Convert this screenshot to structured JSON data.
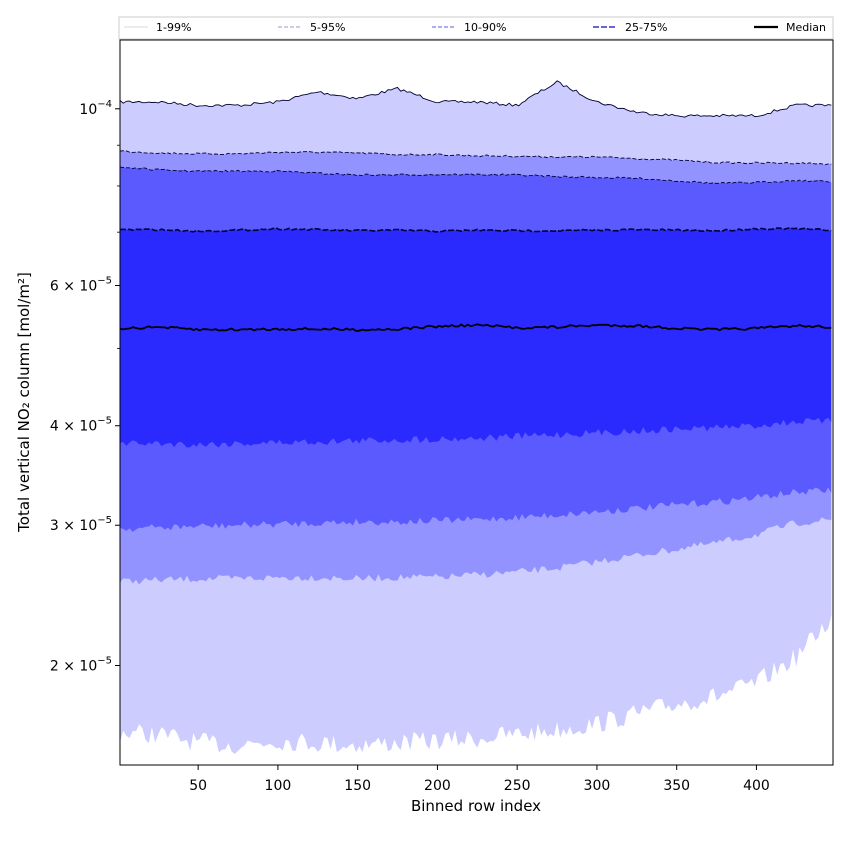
{
  "chart_data": {
    "type": "area",
    "xlabel": "Binned row index",
    "ylabel": "Total vertical NO₂ column [mol/m²]",
    "xlim": [
      1,
      448
    ],
    "ylim": [
      1.5e-05,
      0.000122
    ],
    "yscale": "log",
    "x_ticks": [
      50,
      100,
      150,
      200,
      250,
      300,
      350,
      400
    ],
    "y_ticks": [
      {
        "value": 2e-05,
        "mantissa": "2",
        "exp": "-5"
      },
      {
        "value": 3e-05,
        "mantissa": "3",
        "exp": "-5"
      },
      {
        "value": 4e-05,
        "mantissa": "4",
        "exp": "-5"
      },
      {
        "value": 6e-05,
        "mantissa": "6",
        "exp": "-5"
      },
      {
        "value": 0.0001,
        "mantissa": "",
        "exp": "-4"
      }
    ],
    "legend_position": "top (above plot)",
    "x": [
      1,
      25,
      50,
      75,
      100,
      125,
      150,
      175,
      200,
      225,
      250,
      275,
      300,
      325,
      350,
      375,
      400,
      425,
      448
    ],
    "series": [
      {
        "name": "1-99%",
        "color": "#ccccff",
        "line_color": "#b8b8e8",
        "lower": [
          1.65e-05,
          1.64e-05,
          1.6e-05,
          1.59e-05,
          1.61e-05,
          1.6e-05,
          1.59e-05,
          1.6e-05,
          1.61e-05,
          1.62e-05,
          1.64e-05,
          1.66e-05,
          1.69e-05,
          1.74e-05,
          1.79e-05,
          1.83e-05,
          1.9e-05,
          2.05e-05,
          2.3e-05
        ],
        "upper": [
          0.000102,
          0.000102,
          0.000101,
          0.000101,
          0.000102,
          0.000105,
          0.000103,
          0.000106,
          0.000102,
          0.000102,
          0.000101,
          0.000108,
          0.000102,
          9.9e-05,
          9.8e-05,
          9.8e-05,
          9.8e-05,
          0.000101,
          0.000101
        ]
      },
      {
        "name": "5-95%",
        "color": "#9393ff",
        "line_color": "#7777cc",
        "lower": [
          2.55e-05,
          2.56e-05,
          2.57e-05,
          2.57e-05,
          2.58e-05,
          2.58e-05,
          2.57e-05,
          2.58e-05,
          2.58e-05,
          2.6e-05,
          2.62e-05,
          2.65e-05,
          2.7e-05,
          2.75e-05,
          2.8e-05,
          2.85e-05,
          2.92e-05,
          3.02e-05,
          3.05e-05
        ],
        "upper": [
          8.85e-05,
          8.8e-05,
          8.78e-05,
          8.78e-05,
          8.82e-05,
          8.82e-05,
          8.8e-05,
          8.76e-05,
          8.76e-05,
          8.73e-05,
          8.72e-05,
          8.7e-05,
          8.7e-05,
          8.66e-05,
          8.62e-05,
          8.56e-05,
          8.55e-05,
          8.55e-05,
          8.52e-05
        ]
      },
      {
        "name": "10-90%",
        "color": "#5a5aff",
        "line_color": "#3434aa",
        "lower": [
          2.97e-05,
          2.98e-05,
          2.99e-05,
          3e-05,
          3.01e-05,
          3.02e-05,
          3.03e-05,
          3.03e-05,
          3.04e-05,
          3.05e-05,
          3.07e-05,
          3.09e-05,
          3.12e-05,
          3.15e-05,
          3.18e-05,
          3.21e-05,
          3.25e-05,
          3.3e-05,
          3.32e-05
        ],
        "upper": [
          8.45e-05,
          8.38e-05,
          8.35e-05,
          8.35e-05,
          8.35e-05,
          8.3e-05,
          8.26e-05,
          8.26e-05,
          8.27e-05,
          8.27e-05,
          8.26e-05,
          8.22e-05,
          8.2e-05,
          8.18e-05,
          8.12e-05,
          8.06e-05,
          8.08e-05,
          8.13e-05,
          8.1e-05
        ]
      },
      {
        "name": "25-75%",
        "color": "#2a2aff",
        "line_color": "#1a1a99",
        "lower": [
          3.8e-05,
          3.8e-05,
          3.79e-05,
          3.8e-05,
          3.81e-05,
          3.82e-05,
          3.83e-05,
          3.84e-05,
          3.85e-05,
          3.86e-05,
          3.88e-05,
          3.9e-05,
          3.92e-05,
          3.94e-05,
          3.96e-05,
          3.98e-05,
          4e-05,
          4.05e-05,
          4.05e-05
        ],
        "upper": [
          7.05e-05,
          7.05e-05,
          7.02e-05,
          7.04e-05,
          7.07e-05,
          7.05e-05,
          7.03e-05,
          7.04e-05,
          7.02e-05,
          7.04e-05,
          7.03e-05,
          7.03e-05,
          7.04e-05,
          7.05e-05,
          7.04e-05,
          7.03e-05,
          7.07e-05,
          7.07e-05,
          7.04e-05
        ]
      },
      {
        "name": "Median",
        "color": "#000000",
        "values": [
          5.3e-05,
          5.32e-05,
          5.28e-05,
          5.28e-05,
          5.29e-05,
          5.29e-05,
          5.28e-05,
          5.29e-05,
          5.33e-05,
          5.35e-05,
          5.31e-05,
          5.32e-05,
          5.35e-05,
          5.34e-05,
          5.3e-05,
          5.28e-05,
          5.3e-05,
          5.34e-05,
          5.32e-05
        ]
      }
    ]
  }
}
